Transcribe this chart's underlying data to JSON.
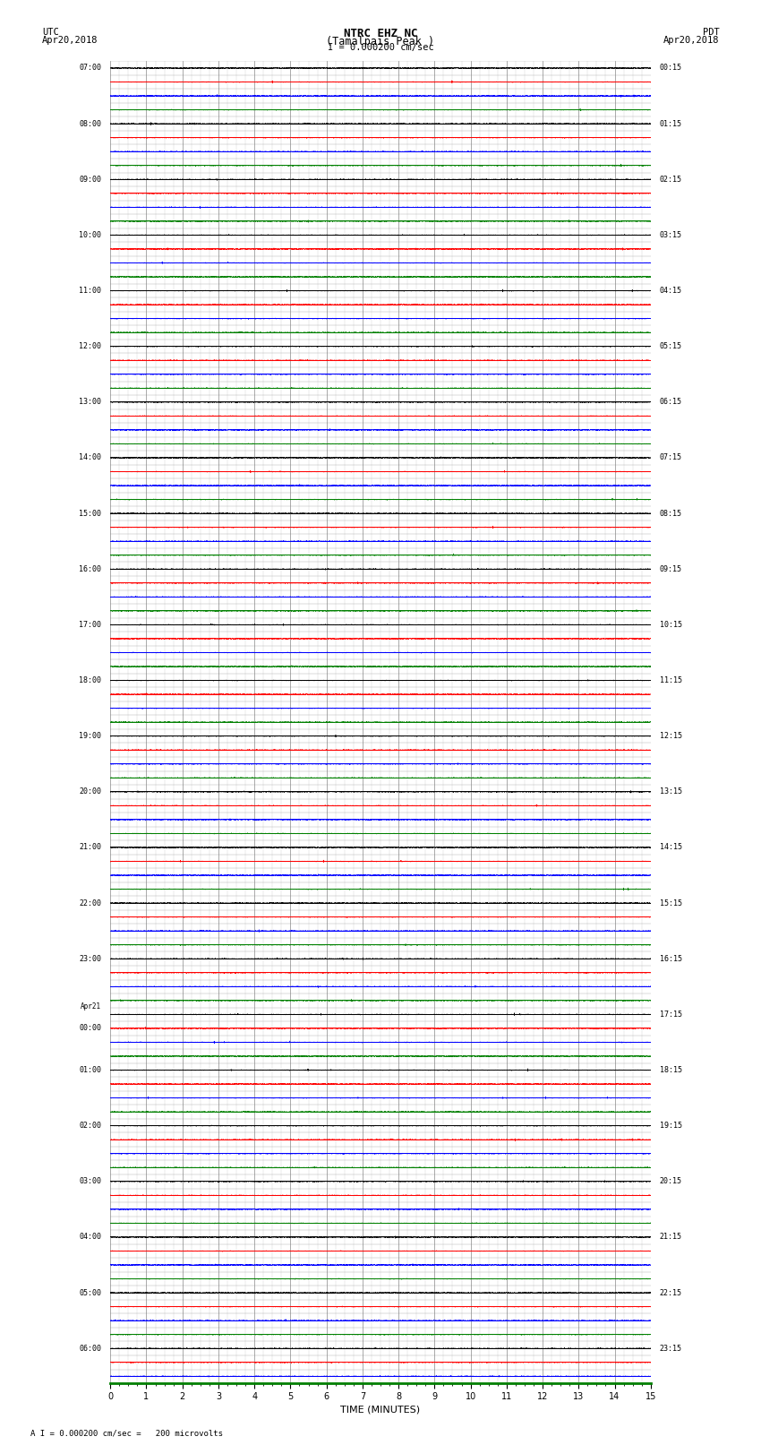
{
  "title_line1": "NTRC EHZ NC",
  "title_line2": "(Tamalpais Peak )",
  "scale_label": "I = 0.000200 cm/sec",
  "left_header1": "UTC",
  "left_header2": "Apr20,2018",
  "right_header1": "PDT",
  "right_header2": "Apr20,2018",
  "xlabel": "TIME (MINUTES)",
  "footer": "A I = 0.000200 cm/sec =   200 microvolts",
  "bg_color": "#ffffff",
  "trace_colors_cycle": [
    "black",
    "red",
    "blue",
    "green"
  ],
  "minutes_per_row": 15,
  "sample_rate": 40,
  "noise_level": 0.012,
  "event_amplitude": 0.08,
  "utc_row_labels": [
    "07:00",
    "",
    "",
    "",
    "08:00",
    "",
    "",
    "",
    "09:00",
    "",
    "",
    "",
    "10:00",
    "",
    "",
    "",
    "11:00",
    "",
    "",
    "",
    "12:00",
    "",
    "",
    "",
    "13:00",
    "",
    "",
    "",
    "14:00",
    "",
    "",
    "",
    "15:00",
    "",
    "",
    "",
    "16:00",
    "",
    "",
    "",
    "17:00",
    "",
    "",
    "",
    "18:00",
    "",
    "",
    "",
    "19:00",
    "",
    "",
    "",
    "20:00",
    "",
    "",
    "",
    "21:00",
    "",
    "",
    "",
    "22:00",
    "",
    "",
    "",
    "23:00",
    "",
    "",
    "",
    "Apr21",
    "00:00",
    "",
    "",
    "01:00",
    "",
    "",
    "",
    "02:00",
    "",
    "",
    "",
    "03:00",
    "",
    "",
    "",
    "04:00",
    "",
    "",
    "",
    "05:00",
    "",
    "",
    "",
    "06:00",
    "",
    ""
  ],
  "pdt_row_labels": [
    "00:15",
    "",
    "",
    "",
    "01:15",
    "",
    "",
    "",
    "02:15",
    "",
    "",
    "",
    "03:15",
    "",
    "",
    "",
    "04:15",
    "",
    "",
    "",
    "05:15",
    "",
    "",
    "",
    "06:15",
    "",
    "",
    "",
    "07:15",
    "",
    "",
    "",
    "08:15",
    "",
    "",
    "",
    "09:15",
    "",
    "",
    "",
    "10:15",
    "",
    "",
    "",
    "11:15",
    "",
    "",
    "",
    "12:15",
    "",
    "",
    "",
    "13:15",
    "",
    "",
    "",
    "14:15",
    "",
    "",
    "",
    "15:15",
    "",
    "",
    "",
    "16:15",
    "",
    "",
    "",
    "17:15",
    "",
    "",
    "",
    "18:15",
    "",
    "",
    "",
    "19:15",
    "",
    "",
    "",
    "20:15",
    "",
    "",
    "",
    "21:15",
    "",
    "",
    "",
    "22:15",
    "",
    "",
    "",
    "23:15",
    "",
    ""
  ],
  "x_major_ticks": [
    0,
    1,
    2,
    3,
    4,
    5,
    6,
    7,
    8,
    9,
    10,
    11,
    12,
    13,
    14,
    15
  ]
}
